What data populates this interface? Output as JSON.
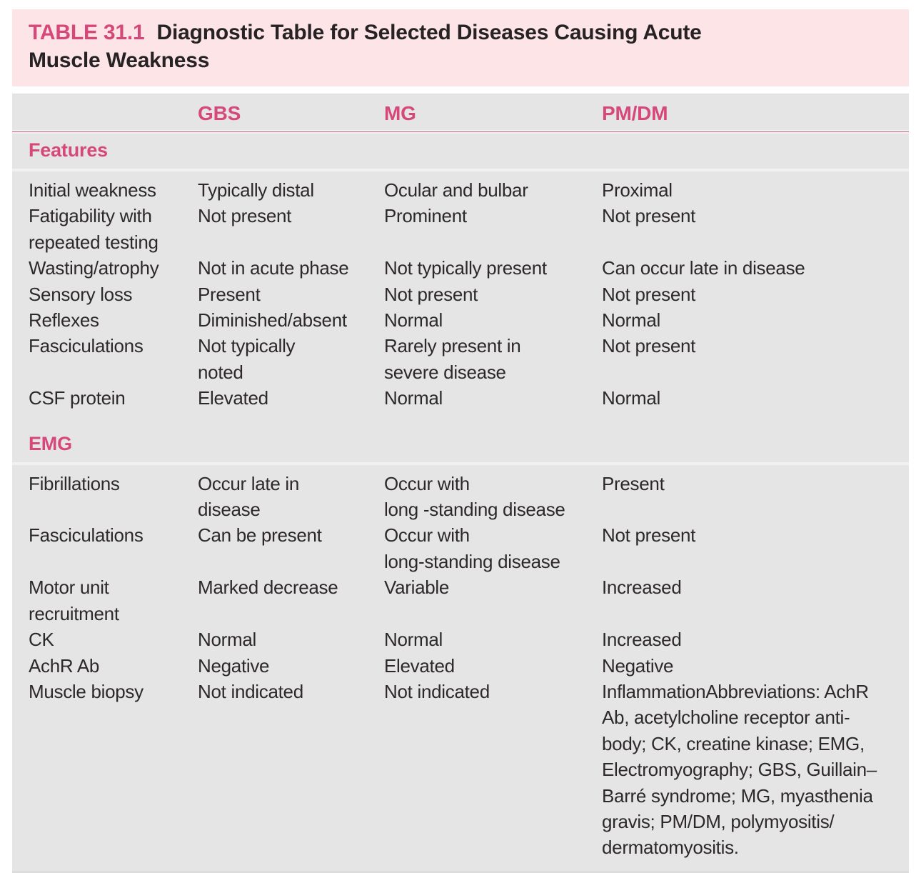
{
  "title": {
    "label": "TABLE 31.1",
    "text": "Diagnostic Table for Selected Diseases Causing Acute\nMuscle Weakness"
  },
  "columns": {
    "gbs": "GBS",
    "mg": "MG",
    "pmdm": "PM/DM"
  },
  "sections": [
    {
      "name": "Features",
      "rows": [
        [
          "Initial weakness",
          "Typically distal",
          "Ocular and bulbar",
          "Proximal"
        ],
        [
          "Fatigability with\nrepeated testing",
          "Not present",
          "Prominent",
          "Not present"
        ],
        [
          "Wasting/atrophy",
          "Not in acute phase",
          "Not typically present",
          "Can occur late in disease"
        ],
        [
          "Sensory loss",
          "Present",
          "Not present",
          "Not present"
        ],
        [
          "Reflexes",
          "Diminished/absent",
          "Normal",
          "Normal"
        ],
        [
          "Fasciculations",
          "Not typically\nnoted",
          "Rarely present in\nsevere disease",
          "Not present"
        ],
        [
          "CSF protein",
          "Elevated",
          "Normal",
          "Normal"
        ]
      ]
    },
    {
      "name": "EMG",
      "rows": [
        [
          "Fibrillations",
          "Occur late in\ndisease",
          "Occur with\nlong -standing disease",
          "Present"
        ],
        [
          "Fasciculations",
          "Can be present",
          "Occur with\nlong-standing disease",
          "Not present"
        ],
        [
          "Motor unit\nrecruitment",
          "Marked decrease",
          "Variable",
          "Increased"
        ],
        [
          "CK",
          "Normal",
          "Normal",
          "Increased"
        ],
        [
          "AchR Ab",
          "Negative",
          "Elevated",
          "Negative"
        ],
        [
          "Muscle biopsy",
          "Not indicated",
          "Not indicated",
          "InflammationAbbreviations: AchR\nAb, acetylcholine receptor anti-\nbody; CK, creatine kinase; EMG,\nElectromyography; GBS, Guillain–\nBarré syndrome; MG, myasthenia\ngravis; PM/DM, polymyositis/\ndermatomyositis."
        ]
      ]
    }
  ],
  "colors": {
    "accent_pink": "#d6487a",
    "title_background": "#fce4e7",
    "table_background": "#e6e5e6",
    "rule_pink": "#bd5381",
    "text_dark": "#272324"
  }
}
